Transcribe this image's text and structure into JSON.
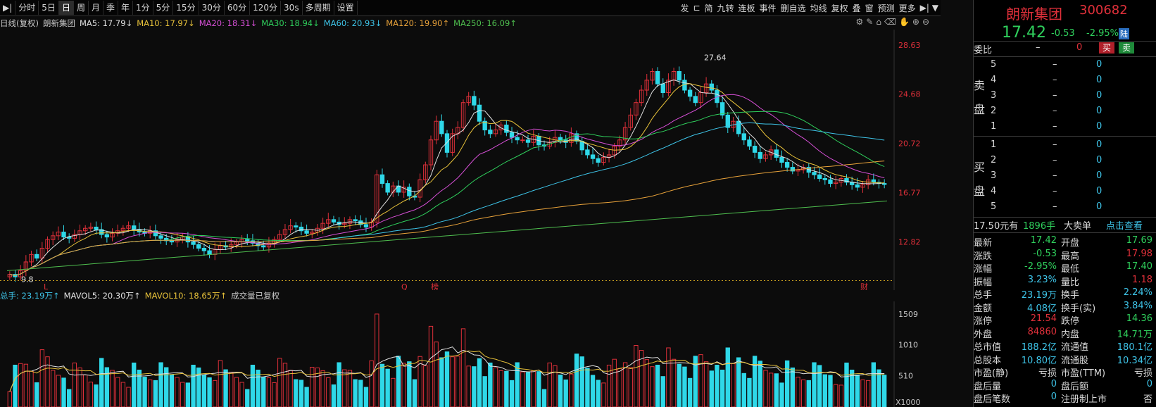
{
  "toolbar": {
    "left_items": [
      "分时",
      "5日",
      "日",
      "周",
      "月",
      "季",
      "年",
      "1分",
      "5分",
      "15分",
      "30分",
      "60分",
      "120分",
      "30s",
      "多周期",
      "设置"
    ],
    "active_item": "日",
    "right_items": [
      "发",
      "⊏",
      "简",
      "九转",
      "连板",
      "事件",
      "删自选",
      "均线",
      "复权",
      "叠",
      "窗",
      "预测",
      "更多"
    ]
  },
  "ma_legend": {
    "title": "日线(复权)",
    "stock": "朗新集团",
    "items": [
      {
        "label": "MA5: 17.79↓",
        "color": "#e0e0e0"
      },
      {
        "label": "MA10: 17.97↓",
        "color": "#e8c23a"
      },
      {
        "label": "MA20: 18.31↓",
        "color": "#d64fd6"
      },
      {
        "label": "MA30: 18.94↓",
        "color": "#2fcf5c"
      },
      {
        "label": "MA60: 20.93↓",
        "color": "#3ec4e8"
      },
      {
        "label": "MA120: 19.90↑",
        "color": "#e8a23a"
      },
      {
        "label": "MA250: 16.09↑",
        "color": "#4fbf4f"
      }
    ]
  },
  "vol_legend": {
    "items": [
      {
        "label": "总手: 23.19万↑",
        "color": "#3ec4e8"
      },
      {
        "label": "MAVOL5: 20.30万↑",
        "color": "#e0e0e0"
      },
      {
        "label": "MAVOL10: 18.65万↑",
        "color": "#e8c23a"
      },
      {
        "label": "成交量已复权",
        "color": "#c8c8c8"
      }
    ]
  },
  "chart_data": {
    "type": "candlestick",
    "price_axis_ticks": [
      "28.63",
      "24.68",
      "20.72",
      "16.77",
      "12.82"
    ],
    "price_axis_values": [
      28.63,
      24.68,
      20.72,
      16.77,
      12.82
    ],
    "price_range": [
      9.5,
      29.3
    ],
    "volume_axis_ticks": [
      "1509",
      "1010",
      "510"
    ],
    "volume_axis_values": [
      1509,
      1010,
      510
    ],
    "volume_unit_label": "X1000",
    "annotations": {
      "max_label": "27.64",
      "min_label": "9.8",
      "event_labels": [
        "L",
        "Q",
        "榜",
        "财"
      ]
    },
    "closes": [
      10.2,
      10.0,
      10.5,
      11.2,
      11.8,
      11.5,
      12.3,
      13.0,
      13.3,
      13.6,
      13.2,
      13.1,
      13.4,
      13.7,
      13.9,
      14.0,
      13.8,
      13.4,
      13.2,
      13.5,
      13.7,
      13.9,
      14.1,
      13.8,
      13.6,
      13.5,
      13.7,
      13.3,
      13.1,
      12.9,
      12.8,
      13.0,
      13.2,
      12.8,
      12.6,
      12.3,
      12.1,
      11.8,
      12.2,
      12.5,
      12.4,
      12.6,
      12.8,
      13.0,
      12.9,
      12.7,
      12.5,
      12.4,
      12.7,
      13.0,
      13.4,
      13.8,
      14.1,
      14.0,
      13.7,
      13.5,
      13.6,
      13.9,
      14.3,
      14.6,
      14.4,
      14.2,
      14.3,
      14.6,
      14.5,
      14.2,
      14.0,
      14.4,
      18.2,
      17.5,
      16.8,
      17.3,
      16.8,
      17.2,
      16.5,
      16.4,
      17.8,
      19.0,
      21.0,
      22.5,
      21.5,
      20.0,
      21.5,
      22.0,
      24.0,
      24.5,
      23.8,
      22.5,
      21.8,
      21.5,
      21.8,
      22.2,
      21.6,
      21.2,
      21.0,
      21.0,
      20.8,
      21.3,
      20.6,
      20.5,
      20.8,
      21.2,
      21.0,
      20.8,
      21.5,
      20.9,
      20.2,
      19.8,
      19.5,
      19.2,
      19.6,
      19.8,
      20.5,
      21.0,
      22.0,
      23.0,
      24.0,
      25.0,
      25.8,
      26.5,
      25.5,
      24.8,
      25.8,
      26.5,
      25.8,
      25.0,
      24.5,
      24.0,
      24.8,
      25.5,
      25.0,
      24.0,
      23.0,
      22.0,
      22.5,
      21.5,
      21.0,
      20.5,
      20.0,
      19.5,
      19.8,
      20.2,
      19.6,
      19.2,
      18.8,
      18.5,
      18.6,
      18.8,
      18.4,
      18.2,
      17.9,
      17.8,
      17.5,
      17.6,
      17.9,
      17.6,
      17.4,
      17.2,
      17.4,
      17.8,
      17.6,
      17.5,
      17.42
    ],
    "ma": {
      "MA5": 17.79,
      "MA10": 17.97,
      "MA20": 18.31,
      "MA30": 18.94,
      "MA60": 20.93,
      "MA120": 19.9,
      "MA250": 16.09
    },
    "volume_last": "23.19万",
    "mavol5": "20.30万",
    "mavol10": "18.65万"
  },
  "panel": {
    "name": "朗新集团",
    "code": "300682",
    "price": "17.42",
    "change": "-0.53",
    "pct": "-2.95%",
    "tag": "陆",
    "weibi_label": "委比",
    "weibi_val": "–",
    "weibi_num": "0",
    "buy_btn": "买",
    "sell_btn": "卖",
    "sell_label_1": "卖",
    "sell_label_2": "盘",
    "buy_label_1": "买",
    "buy_label_2": "盘",
    "sell_levels": [
      "5",
      "4",
      "3",
      "2",
      "1"
    ],
    "buy_levels": [
      "1",
      "2",
      "3",
      "4",
      "5"
    ],
    "dash": "–",
    "zero": "0",
    "bigorder": {
      "price": "17.50元有",
      "qty": "1896手",
      "text": "大卖单",
      "link": "点击查看"
    },
    "stats": [
      {
        "l": "最新",
        "v": "17.42",
        "vc": "green",
        "l2": "开盘",
        "v2": "17.69",
        "v2c": "green"
      },
      {
        "l": "涨跌",
        "v": "-0.53",
        "vc": "green",
        "l2": "最高",
        "v2": "17.98",
        "v2c": "red"
      },
      {
        "l": "涨幅",
        "v": "-2.95%",
        "vc": "green",
        "l2": "最低",
        "v2": "17.40",
        "v2c": "green"
      },
      {
        "l": "振幅",
        "v": "3.23%",
        "vc": "cyan",
        "l2": "量比",
        "v2": "1.18",
        "v2c": "red"
      },
      {
        "l": "总手",
        "v": "23.19万",
        "vc": "cyan",
        "l2": "换手",
        "v2": "2.24%",
        "v2c": "cyan"
      },
      {
        "l": "金额",
        "v": "4.08亿",
        "vc": "cyan",
        "l2": "换手(实)",
        "v2": "3.84%",
        "v2c": "cyan"
      },
      {
        "l": "涨停",
        "v": "21.54",
        "vc": "red",
        "l2": "跌停",
        "v2": "14.36",
        "v2c": "green"
      },
      {
        "l": "外盘",
        "v": "84860",
        "vc": "red",
        "l2": "内盘",
        "v2": "14.71万",
        "v2c": "green"
      },
      {
        "l": "总市值",
        "v": "188.2亿",
        "vc": "cyan",
        "l2": "流通值",
        "v2": "180.1亿",
        "v2c": "cyan"
      },
      {
        "l": "总股本",
        "v": "10.80亿",
        "vc": "cyan",
        "l2": "流通股",
        "v2": "10.34亿",
        "v2c": "cyan"
      },
      {
        "l": "市盈(静)",
        "v": "亏损",
        "vc": "white",
        "l2": "市盈(TTM)",
        "v2": "亏损",
        "v2c": "white"
      },
      {
        "l": "盘后量",
        "v": "0",
        "vc": "cyan",
        "l2": "盘后额",
        "v2": "0",
        "v2c": "cyan"
      },
      {
        "l": "盘后笔数",
        "v": "0",
        "vc": "cyan",
        "l2": "注册制上市",
        "v2": "否",
        "v2c": "white"
      }
    ]
  },
  "colors": {
    "up": "#e0303a",
    "down": "#2fd8e8",
    "bg": "#0c0c0c"
  }
}
